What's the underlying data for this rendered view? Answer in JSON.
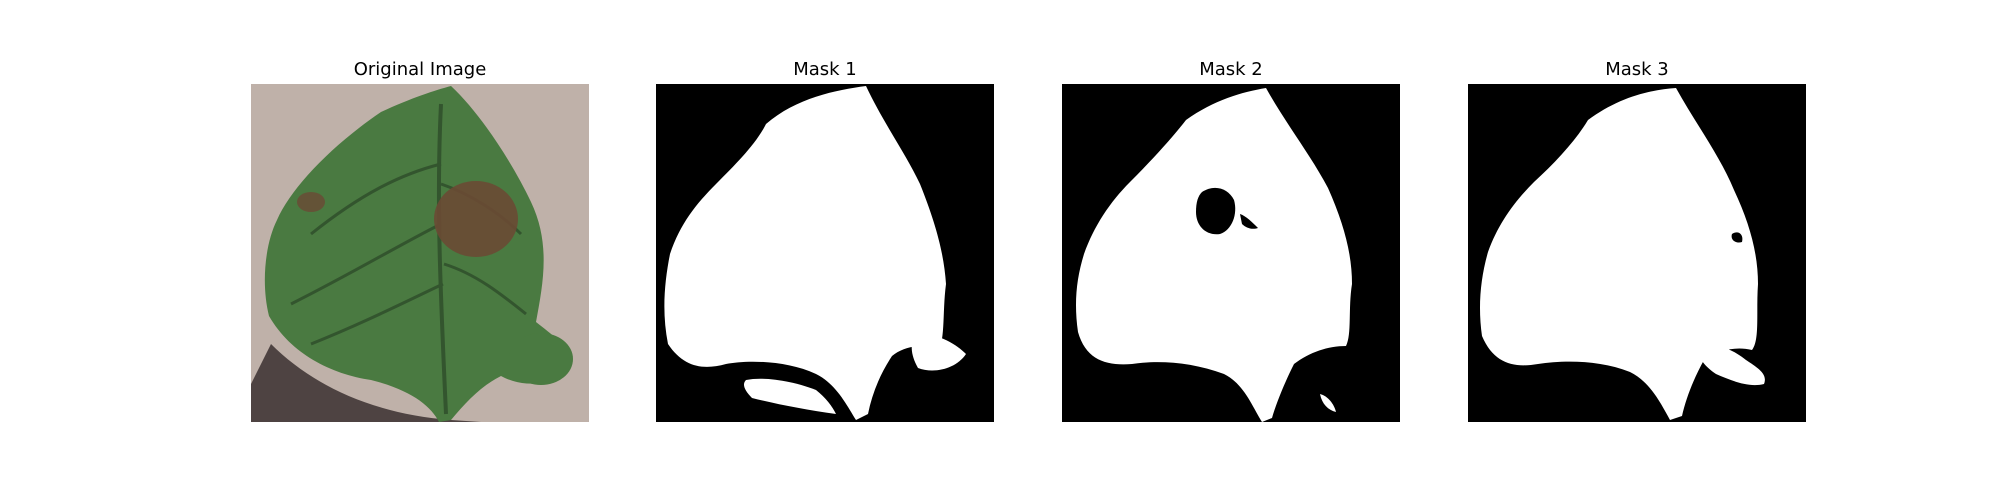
{
  "panels": [
    {
      "title": "Original Image",
      "kind": "photo"
    },
    {
      "title": "Mask 1",
      "kind": "mask"
    },
    {
      "title": "Mask 2",
      "kind": "mask"
    },
    {
      "title": "Mask 3",
      "kind": "mask"
    }
  ],
  "colors": {
    "background": "#bfb1a9",
    "leaf": "#4a7a41",
    "leaf_dark": "#33552e",
    "lesion": "#6a4a34",
    "shadow": "#3a3030",
    "mask_bg": "#000000",
    "mask_fg": "#ffffff"
  }
}
